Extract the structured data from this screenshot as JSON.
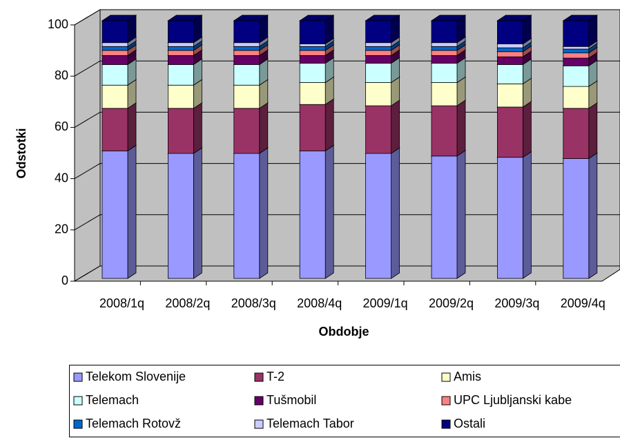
{
  "chart_data": {
    "type": "bar",
    "stacked": true,
    "x_label": "Obdobje",
    "y_label": "Odstotki",
    "categories": [
      "2008/1q",
      "2008/2q",
      "2008/3q",
      "2008/4q",
      "2009/1q",
      "2009/2q",
      "2009/3q",
      "2009/4q"
    ],
    "ylim": [
      0,
      100
    ],
    "yticks": [
      0,
      20,
      40,
      60,
      80,
      100
    ],
    "grid": true,
    "series": [
      {
        "name": "Telekom Slovenije",
        "color": "#9999ff",
        "values": [
          49.5,
          48.5,
          48.5,
          49.5,
          48.5,
          47.5,
          47,
          46.5
        ]
      },
      {
        "name": "T-2",
        "color": "#993366",
        "values": [
          16.5,
          17.5,
          17.5,
          18,
          18.5,
          19.5,
          19.5,
          19.5
        ]
      },
      {
        "name": "Amis",
        "color": "#ffffcc",
        "values": [
          9,
          9,
          9,
          8.5,
          9,
          9,
          9,
          8.5
        ]
      },
      {
        "name": "Telemach",
        "color": "#ccffff",
        "values": [
          8,
          8,
          8,
          7.5,
          7.5,
          7.5,
          7.5,
          8
        ]
      },
      {
        "name": "Tušmobil",
        "color": "#660066",
        "values": [
          3.5,
          3.5,
          3.5,
          3,
          3,
          3,
          3,
          3
        ]
      },
      {
        "name": "UPC Ljubljanski kabe",
        "color": "#ff8080",
        "values": [
          2,
          2,
          2,
          2,
          2,
          2,
          2,
          2
        ]
      },
      {
        "name": "Telemach Rotovž",
        "color": "#0066cc",
        "values": [
          1.5,
          1.5,
          1.5,
          1.5,
          1.5,
          1.5,
          1.5,
          1.5
        ]
      },
      {
        "name": "Telemach Tabor",
        "color": "#ccccff",
        "values": [
          1.5,
          1.5,
          1.5,
          1,
          1.5,
          1.5,
          1.5,
          1
        ]
      },
      {
        "name": "Ostali",
        "color": "#000080",
        "values": [
          8.5,
          8.5,
          8.5,
          9,
          8.5,
          8.5,
          9,
          10
        ]
      }
    ]
  }
}
